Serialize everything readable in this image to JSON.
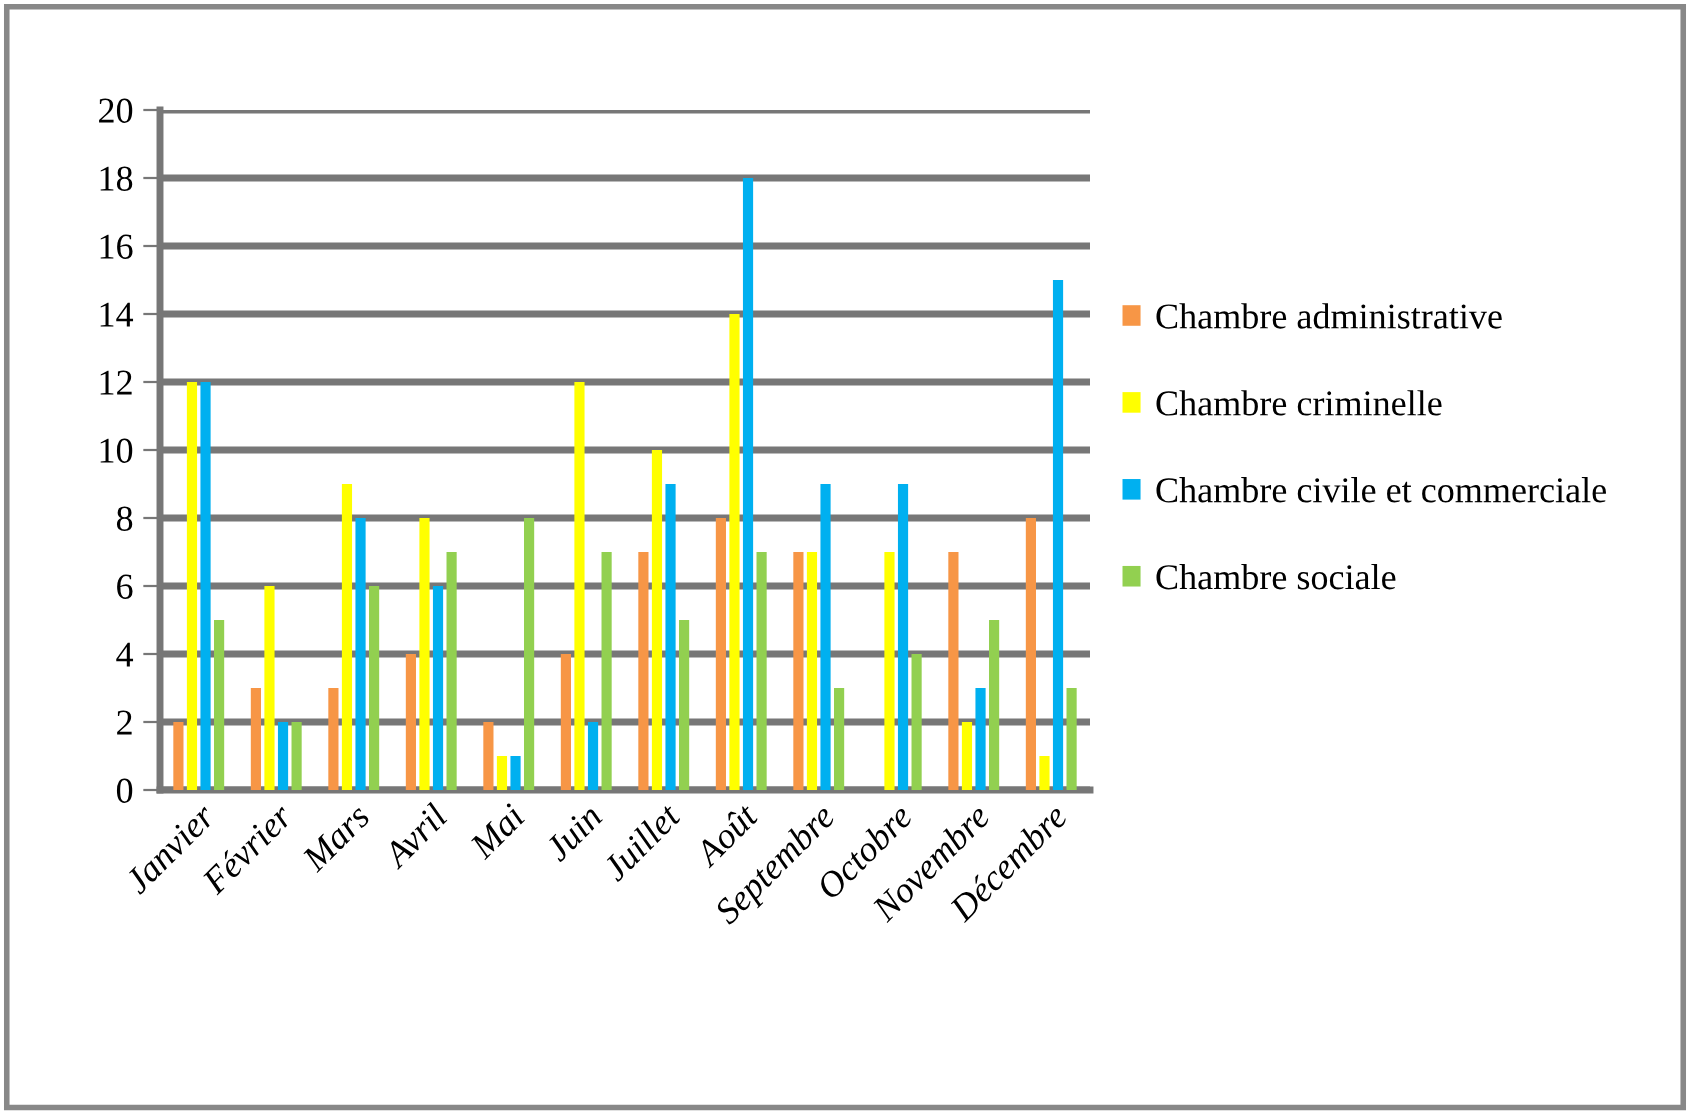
{
  "chart_data": {
    "type": "bar",
    "categories": [
      "Janvier",
      "Février",
      "Mars",
      "Avril",
      "Mai",
      "Juin",
      "Juillet",
      "Août",
      "Septembre",
      "Octobre",
      "Novembre",
      "Décembre"
    ],
    "series": [
      {
        "name": "Chambre administrative",
        "color": "#f79646",
        "values": [
          2,
          3,
          3,
          4,
          2,
          4,
          7,
          8,
          7,
          0,
          7,
          8
        ]
      },
      {
        "name": "Chambre criminelle",
        "color": "#ffff00",
        "values": [
          12,
          6,
          9,
          8,
          1,
          12,
          10,
          14,
          7,
          7,
          2,
          1
        ]
      },
      {
        "name": "Chambre civile et commerciale",
        "color": "#00b0f0",
        "values": [
          12,
          2,
          8,
          6,
          1,
          2,
          9,
          18,
          9,
          9,
          3,
          15
        ]
      },
      {
        "name": "Chambre sociale",
        "color": "#92d050",
        "values": [
          5,
          2,
          6,
          7,
          8,
          7,
          5,
          7,
          3,
          4,
          5,
          3
        ]
      }
    ],
    "ylim": [
      0,
      20
    ],
    "yticks": [
      0,
      2,
      4,
      6,
      8,
      10,
      12,
      14,
      16,
      18,
      20
    ],
    "grid": "y",
    "legend": "right"
  }
}
